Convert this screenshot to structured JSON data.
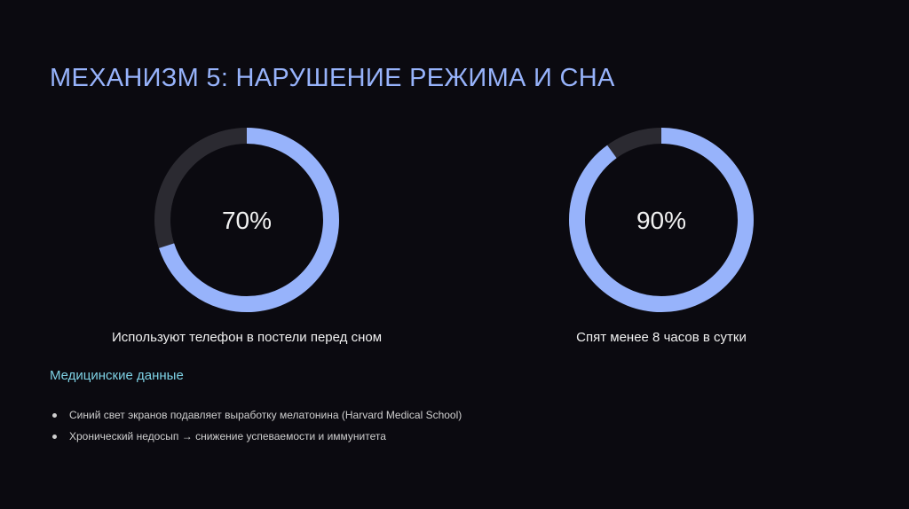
{
  "title": "МЕХАНИЗМ 5: НАРУШЕНИЕ РЕЖИМА И СНА",
  "chart_data": [
    {
      "type": "pie",
      "variant": "donut",
      "value": 70,
      "max": 100,
      "center_label": "70%",
      "caption": "Используют телефон в постели перед сном",
      "colors": {
        "fill": "#97b3fb",
        "track": "#2b2a31"
      }
    },
    {
      "type": "pie",
      "variant": "donut",
      "value": 90,
      "max": 100,
      "center_label": "90%",
      "caption": "Спят менее 8 часов в сутки",
      "colors": {
        "fill": "#97b3fb",
        "track": "#2b2a31"
      }
    }
  ],
  "section": {
    "title": "Медицинские данные",
    "bullets": [
      "Синий свет экранов подавляет выработку мелатонина (Harvard Medical School)",
      "Хронический недосып → снижение успеваемости и иммунитета"
    ]
  }
}
